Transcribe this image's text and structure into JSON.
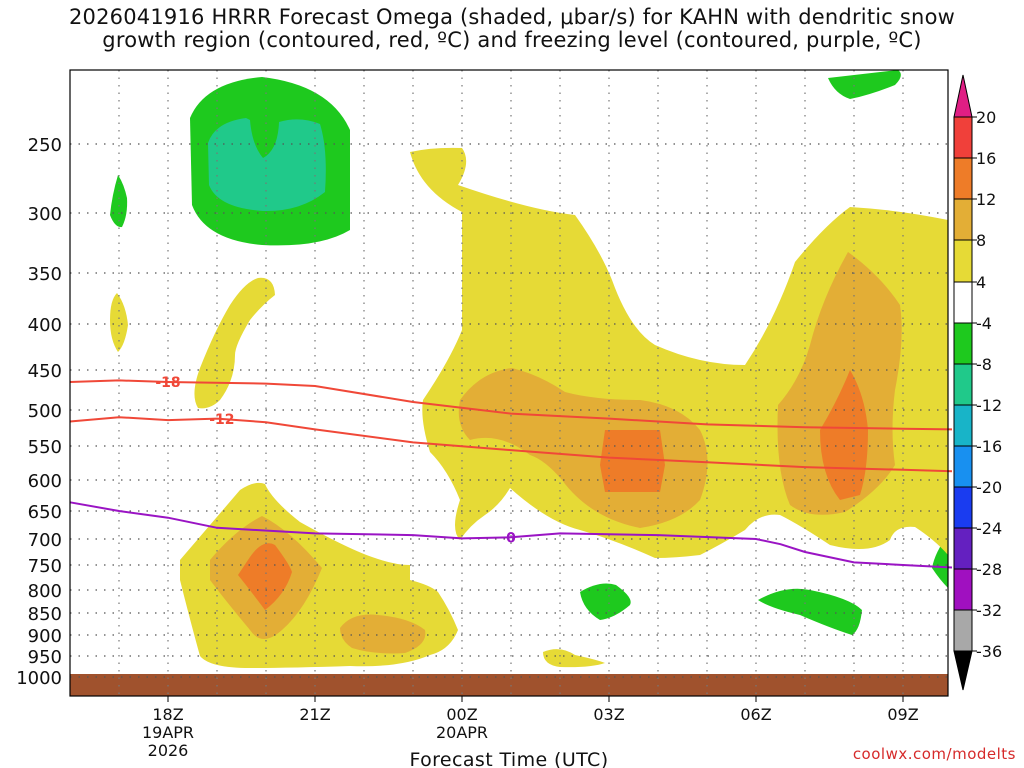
{
  "title": {
    "line1": "2026041916 HRRR Forecast Omega (shaded, μbar/s) for KAHN with dendritic snow",
    "line2": "growth region (contoured, red, ºC) and freezing level (contoured, purple, ºC)"
  },
  "credit": "coolwx.com/modelts",
  "chart_data": {
    "type": "contour",
    "xlabel": "Forecast Time (UTC)",
    "x_ticks": [
      {
        "hour": 18,
        "label": "18Z",
        "sub1": "19APR",
        "sub2": "2026"
      },
      {
        "hour": 21,
        "label": "21Z",
        "sub1": "",
        "sub2": ""
      },
      {
        "hour": 24,
        "label": "00Z",
        "sub1": "20APR",
        "sub2": ""
      },
      {
        "hour": 27,
        "label": "03Z",
        "sub1": "",
        "sub2": ""
      },
      {
        "hour": 30,
        "label": "06Z",
        "sub1": "",
        "sub2": ""
      },
      {
        "hour": 33,
        "label": "09Z",
        "sub1": "",
        "sub2": ""
      }
    ],
    "x_range_hours": [
      16,
      34
    ],
    "y_levels_hpa": [
      250,
      300,
      350,
      400,
      450,
      500,
      550,
      600,
      650,
      700,
      750,
      800,
      850,
      900,
      950,
      1000
    ],
    "y_range_hpa": [
      200,
      1000
    ],
    "colorbar": {
      "labels": [
        "20",
        "16",
        "12",
        "8",
        "4",
        "-4",
        "-8",
        "-12",
        "-16",
        "-20",
        "-24",
        "-28",
        "-32",
        "-36"
      ],
      "colors": [
        "#e01e84",
        "#f0403a",
        "#ee7c28",
        "#e3ae36",
        "#e6da36",
        "#ffffff",
        "#1ec91e",
        "#20c98a",
        "#18b4c8",
        "#1890f0",
        "#1a3cf0",
        "#6420c0",
        "#a010c0",
        "#a8a8a8",
        "#000000"
      ],
      "positive_color": "#e01e84",
      "negative_color": "#000000"
    },
    "terrain_color": "#a0522d",
    "series": [
      {
        "name": "-18",
        "color": "#f04838",
        "points": [
          [
            16,
            465
          ],
          [
            17,
            463
          ],
          [
            18,
            465
          ],
          [
            20,
            467
          ],
          [
            21,
            470
          ],
          [
            23,
            490
          ],
          [
            25,
            505
          ],
          [
            27,
            512
          ],
          [
            29,
            520
          ],
          [
            31,
            524
          ],
          [
            33,
            526
          ],
          [
            34,
            527
          ]
        ]
      },
      {
        "name": "-12",
        "color": "#f04838",
        "points": [
          [
            16,
            516
          ],
          [
            17,
            510
          ],
          [
            18,
            514
          ],
          [
            19,
            512
          ],
          [
            20,
            517
          ],
          [
            21,
            527
          ],
          [
            23,
            545
          ],
          [
            25,
            556
          ],
          [
            27,
            567
          ],
          [
            29,
            574
          ],
          [
            31,
            581
          ],
          [
            33,
            585
          ],
          [
            34,
            587
          ]
        ]
      },
      {
        "name": "0",
        "color": "#9a14c4",
        "points": [
          [
            16,
            636
          ],
          [
            17,
            650
          ],
          [
            18,
            662
          ],
          [
            19,
            680
          ],
          [
            21,
            690
          ],
          [
            23,
            693
          ],
          [
            24,
            699
          ],
          [
            25,
            697
          ],
          [
            26,
            690
          ],
          [
            28,
            693
          ],
          [
            30,
            700
          ],
          [
            30.5,
            710
          ],
          [
            31,
            725
          ],
          [
            32,
            745
          ],
          [
            33,
            750
          ],
          [
            34,
            755
          ]
        ]
      }
    ]
  }
}
